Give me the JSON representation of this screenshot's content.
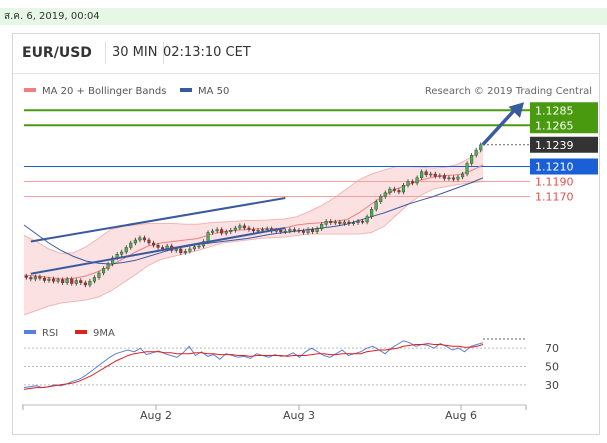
{
  "topbar": {
    "datetime": "ส.ค. 6, 2019, 00:04"
  },
  "header": {
    "pair": "EUR/USD",
    "period": "30 MIN",
    "time": "02:13:10 CET"
  },
  "legend": {
    "ma20_label": "MA 20 + Bollinger Bands",
    "ma50_label": "MA 50",
    "credit": "Research © 2019 Trading Central",
    "ma20_color": "#f08080",
    "ma50_color": "#3a5aa0"
  },
  "rsi_legend": {
    "rsi_label": "RSI",
    "ma_label": "9MA",
    "rsi_color": "#5b7fd6",
    "ma_color": "#dd2222"
  },
  "chart_data": {
    "type": "candlestick",
    "x_ticks": [
      "Aug 2",
      "Aug 3",
      "Aug 6"
    ],
    "y_range": [
      1.102,
      1.13
    ],
    "levels": [
      {
        "value": 1.1285,
        "label": "1.1285",
        "kind": "resistance",
        "color": "#4a9a10"
      },
      {
        "value": 1.1265,
        "label": "1.1265",
        "kind": "resistance",
        "color": "#4a9a10"
      },
      {
        "value": 1.1239,
        "label": "1.1239",
        "kind": "last",
        "color": "#333333"
      },
      {
        "value": 1.121,
        "label": "1.1210",
        "kind": "pivot",
        "color": "#1a5fd6"
      },
      {
        "value": 1.119,
        "label": "1.1190",
        "kind": "support",
        "color": "#e05050"
      },
      {
        "value": 1.117,
        "label": "1.1170",
        "kind": "support",
        "color": "#e05050"
      }
    ],
    "candles": [
      1.1062,
      1.106,
      1.1063,
      1.1061,
      1.1058,
      1.106,
      1.1057,
      1.1059,
      1.1055,
      1.106,
      1.1054,
      1.1058,
      1.1055,
      1.1052,
      1.1057,
      1.1062,
      1.1068,
      1.1074,
      1.108,
      1.1088,
      1.1093,
      1.1096,
      1.1102,
      1.1108,
      1.1112,
      1.1115,
      1.1112,
      1.1108,
      1.1105,
      1.1102,
      1.11,
      1.1104,
      1.1098,
      1.11,
      1.1095,
      1.1097,
      1.11,
      1.1103,
      1.1104,
      1.111,
      1.1122,
      1.1124,
      1.1126,
      1.1121,
      1.1123,
      1.1125,
      1.1128,
      1.1131,
      1.1128,
      1.1126,
      1.1124,
      1.1125,
      1.1126,
      1.1127,
      1.1124,
      1.1125,
      1.1123,
      1.1124,
      1.1126,
      1.1125,
      1.1124,
      1.1122,
      1.1126,
      1.1123,
      1.1127,
      1.1133,
      1.1137,
      1.1135,
      1.1136,
      1.1134,
      1.1136,
      1.1134,
      1.1135,
      1.1137,
      1.1136,
      1.1143,
      1.1153,
      1.1163,
      1.117,
      1.1175,
      1.118,
      1.1178,
      1.1176,
      1.1185,
      1.119,
      1.1188,
      1.1195,
      1.1203,
      1.1199,
      1.12,
      1.1197,
      1.1198,
      1.1194,
      1.1195,
      1.1193,
      1.1196,
      1.12,
      1.1214,
      1.1225,
      1.1232,
      1.1239
    ],
    "ma20": [
      1.1065,
      1.1064,
      1.1062,
      1.106,
      1.1061,
      1.1064,
      1.107,
      1.1078,
      1.1087,
      1.1096,
      1.1104,
      1.1108,
      1.111,
      1.1112,
      1.1114,
      1.1119,
      1.1123,
      1.1125,
      1.1126,
      1.1127,
      1.1127,
      1.1128,
      1.1132,
      1.1134,
      1.1135,
      1.1137,
      1.1139,
      1.1148,
      1.116,
      1.1171,
      1.118,
      1.1186,
      1.1192,
      1.1196,
      1.1198,
      1.1199,
      1.1204,
      1.1212
    ],
    "ma50": [
      1.1132,
      1.112,
      1.1108,
      1.1098,
      1.109,
      1.1084,
      1.1081,
      1.108,
      1.1082,
      1.1085,
      1.109,
      1.1095,
      1.11,
      1.1103,
      1.1106,
      1.1108,
      1.111,
      1.1112,
      1.1114,
      1.1117,
      1.112,
      1.1122,
      1.1124,
      1.1126,
      1.1128,
      1.113,
      1.1133,
      1.1138,
      1.1143,
      1.1148,
      1.1154,
      1.116,
      1.1165,
      1.117,
      1.1176,
      1.1182,
      1.1188,
      1.1195
    ],
    "bb_upper": [
      1.1118,
      1.111,
      1.11,
      1.1094,
      1.1095,
      1.1103,
      1.1114,
      1.1126,
      1.113,
      1.1132,
      1.1134,
      1.1134,
      1.1134,
      1.1133,
      1.1133,
      1.1135,
      1.1136,
      1.1137,
      1.1138,
      1.1138,
      1.1139,
      1.114,
      1.1143,
      1.115,
      1.1158,
      1.1168,
      1.118,
      1.1192,
      1.12,
      1.1205,
      1.121,
      1.121,
      1.1209,
      1.1208,
      1.1209,
      1.1213,
      1.1222,
      1.1232
    ],
    "bb_lower": [
      1.1012,
      1.1018,
      1.1024,
      1.1028,
      1.103,
      1.1032,
      1.1036,
      1.1044,
      1.1055,
      1.1066,
      1.1078,
      1.1086,
      1.109,
      1.1094,
      1.1098,
      1.1103,
      1.1108,
      1.111,
      1.1112,
      1.1114,
      1.1115,
      1.1116,
      1.1118,
      1.112,
      1.112,
      1.112,
      1.112,
      1.112,
      1.1122,
      1.113,
      1.1145,
      1.116,
      1.1172,
      1.118,
      1.1183,
      1.1186,
      1.1188,
      1.119
    ],
    "channel": [
      {
        "from": [
          1,
          1.111
        ],
        "to": [
          57,
          1.1168
        ]
      },
      {
        "from": [
          1,
          1.1067
        ],
        "to": [
          57,
          1.1128
        ]
      }
    ],
    "forecast_arrow": {
      "from": 1.1239,
      "to": 1.1285
    },
    "rsi": {
      "levels": [
        70,
        50,
        30
      ],
      "y_range": [
        20,
        80
      ],
      "rsi": [
        27,
        28,
        29,
        27,
        28,
        30,
        29,
        31,
        34,
        36,
        40,
        45,
        50,
        55,
        60,
        64,
        66,
        68,
        66,
        70,
        63,
        65,
        67,
        64,
        62,
        60,
        65,
        72,
        62,
        66,
        61,
        63,
        58,
        64,
        62,
        60,
        61,
        59,
        64,
        62,
        60,
        63,
        61,
        62,
        65,
        60,
        66,
        70,
        66,
        62,
        60,
        64,
        68,
        62,
        64,
        66,
        70,
        72,
        68,
        64,
        70,
        74,
        78,
        76,
        72,
        74,
        73,
        70,
        75,
        72,
        68,
        70,
        66,
        72,
        74,
        76
      ],
      "ma": [
        25,
        26,
        27,
        27,
        28,
        29,
        30,
        31,
        32,
        34,
        37,
        40,
        44,
        48,
        52,
        56,
        59,
        62,
        64,
        65,
        66,
        66,
        66,
        65,
        65,
        64,
        64,
        64,
        65,
        65,
        64,
        64,
        63,
        63,
        63,
        62,
        62,
        61,
        62,
        62,
        62,
        62,
        62,
        61,
        62,
        62,
        62,
        63,
        64,
        64,
        63,
        63,
        64,
        64,
        64,
        64,
        66,
        67,
        68,
        68,
        69,
        70,
        72,
        73,
        74,
        74,
        75,
        74,
        74,
        73,
        72,
        72,
        71,
        71,
        72,
        74
      ]
    },
    "last_rsi_level": 80
  }
}
